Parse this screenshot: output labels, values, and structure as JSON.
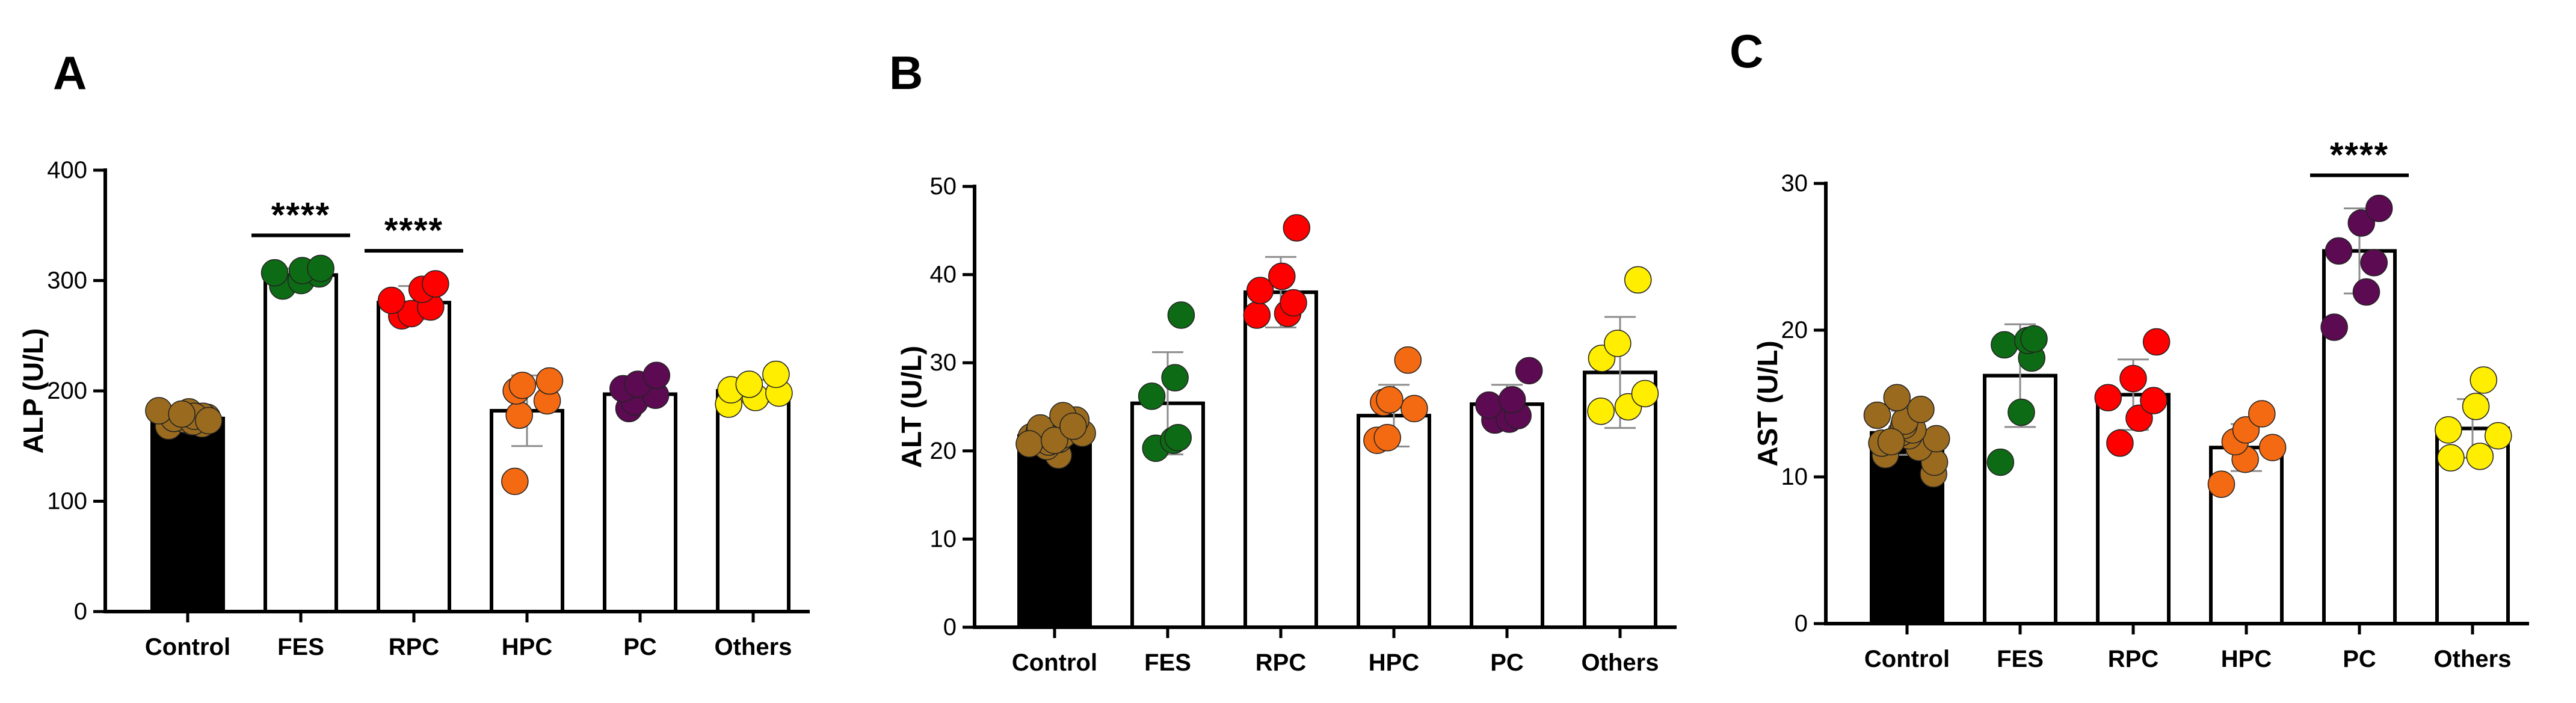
{
  "chart_data": [
    {
      "panel": "A",
      "type": "bar",
      "ylabel": "ALP (U/L)",
      "ylim": [
        0,
        400
      ],
      "yticks": [
        0,
        100,
        200,
        300,
        400
      ],
      "categories": [
        "Control",
        "FES",
        "RPC",
        "HPC",
        "PC",
        "Others"
      ],
      "values": [
        175,
        305,
        280,
        182,
        197,
        200
      ],
      "errors": [
        3,
        6,
        15,
        32,
        10,
        10
      ],
      "significance": [
        {
          "category": "FES",
          "label": "****"
        },
        {
          "category": "RPC",
          "label": "****"
        }
      ],
      "points": [
        [
          168,
          170,
          172,
          174,
          175,
          176,
          177,
          178,
          180,
          181,
          182,
          172,
          177,
          179,
          173
        ],
        [
          295,
          300,
          306,
          307,
          309,
          311
        ],
        [
          268,
          270,
          276,
          282,
          292,
          297
        ],
        [
          118,
          178,
          191,
          200,
          205,
          209
        ],
        [
          184,
          190,
          196,
          202,
          206,
          214
        ],
        [
          188,
          194,
          198,
          201,
          206,
          215
        ]
      ]
    },
    {
      "panel": "B",
      "type": "bar",
      "ylabel": "ALT (U/L)",
      "ylim": [
        0,
        50
      ],
      "yticks": [
        0,
        10,
        20,
        30,
        40,
        50
      ],
      "categories": [
        "Control",
        "FES",
        "RPC",
        "HPC",
        "PC",
        "Others"
      ],
      "values": [
        21.7,
        25.4,
        38.0,
        24.0,
        25.3,
        28.9
      ],
      "errors": [
        1.2,
        5.8,
        4.0,
        3.5,
        2.2,
        6.3
      ],
      "significance": [],
      "points": [
        [
          19.5,
          20.5,
          21.0,
          21.3,
          21.6,
          21.8,
          22.0,
          22.3,
          22.6,
          23.0,
          23.5,
          24.0,
          20.8,
          21.2,
          22.8
        ],
        [
          20.3,
          21.2,
          21.5,
          26.2,
          28.3,
          35.4
        ],
        [
          35.4,
          35.6,
          36.8,
          38.2,
          39.8,
          45.3
        ],
        [
          21.2,
          21.5,
          24.8,
          25.5,
          25.8,
          30.3
        ],
        [
          23.5,
          23.6,
          24.0,
          25.2,
          25.8,
          29.1
        ],
        [
          24.5,
          25.0,
          26.5,
          30.5,
          32.2,
          39.4
        ]
      ]
    },
    {
      "panel": "C",
      "type": "bar",
      "ylabel": "AST (U/L)",
      "ylim": [
        0,
        30
      ],
      "yticks": [
        0,
        10,
        20,
        30
      ],
      "categories": [
        "Control",
        "FES",
        "RPC",
        "HPC",
        "PC",
        "Others"
      ],
      "values": [
        13.0,
        16.9,
        15.6,
        12.0,
        25.4,
        13.3
      ],
      "errors": [
        1.5,
        3.5,
        2.4,
        1.6,
        2.9,
        2.0
      ],
      "significance": [
        {
          "category": "PC",
          "label": "****"
        }
      ],
      "points": [
        [
          10.2,
          11.0,
          11.5,
          12.0,
          12.3,
          12.6,
          12.8,
          13.0,
          13.2,
          13.5,
          13.8,
          14.2,
          14.6,
          15.4,
          12.4
        ],
        [
          11.0,
          14.4,
          18.1,
          19.0,
          19.3,
          19.4
        ],
        [
          12.3,
          14.0,
          15.2,
          15.4,
          16.7,
          19.2
        ],
        [
          9.5,
          11.2,
          12.0,
          12.4,
          13.2,
          14.3
        ],
        [
          20.2,
          22.6,
          24.6,
          25.4,
          27.3,
          28.3
        ],
        [
          11.3,
          11.4,
          12.8,
          13.2,
          14.8,
          16.6
        ]
      ]
    }
  ],
  "colors": {
    "Control": "#9a6b1f",
    "FES": "#0e6b15",
    "RPC": "#ff0000",
    "HPC": "#f46a12",
    "PC": "#5c0a52",
    "Others": "#ffee00",
    "control_bar": "#000000",
    "bar_fill": "#ffffff",
    "error_bar": "#8c8c8c"
  }
}
